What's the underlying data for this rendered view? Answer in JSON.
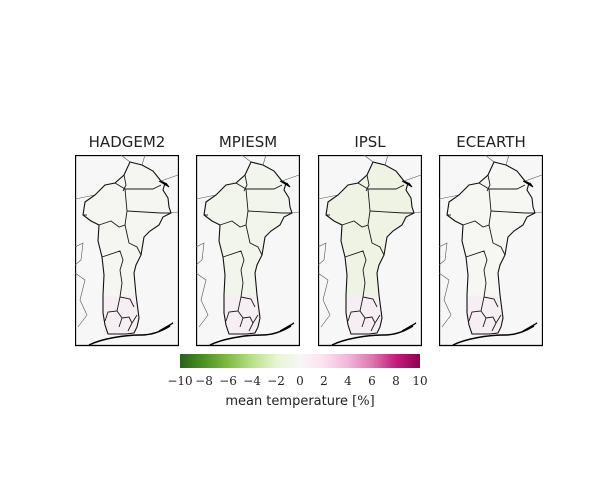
{
  "panels": [
    {
      "title": "HADGEM2",
      "fill": "#f5f6f1"
    },
    {
      "title": "MPIESM",
      "fill": "#f2f5ec"
    },
    {
      "title": "IPSL",
      "fill": "#eef3e4"
    },
    {
      "title": "ECEARTH",
      "fill": "#f6f6f3"
    }
  ],
  "colorbar": {
    "ticks": [
      "−10",
      "−8",
      "−6",
      "−4",
      "−2",
      "0",
      "2",
      "4",
      "6",
      "8",
      "10"
    ],
    "tick_values": [
      -10,
      -8,
      -6,
      -4,
      -2,
      0,
      2,
      4,
      6,
      8,
      10
    ],
    "range": [
      -10,
      10
    ],
    "colormap": "PiYG_r",
    "colors": [
      "#276419",
      "#4d9221",
      "#7fbc41",
      "#b8e186",
      "#e6f5d0",
      "#f7f7f7",
      "#fde0ef",
      "#f1b6da",
      "#de77ae",
      "#c51b7d",
      "#8e0152"
    ],
    "label_text": "mean temperature ",
    "label_unit": "[%]"
  },
  "region_tint": {
    "south_pink": "#f6eef3"
  }
}
